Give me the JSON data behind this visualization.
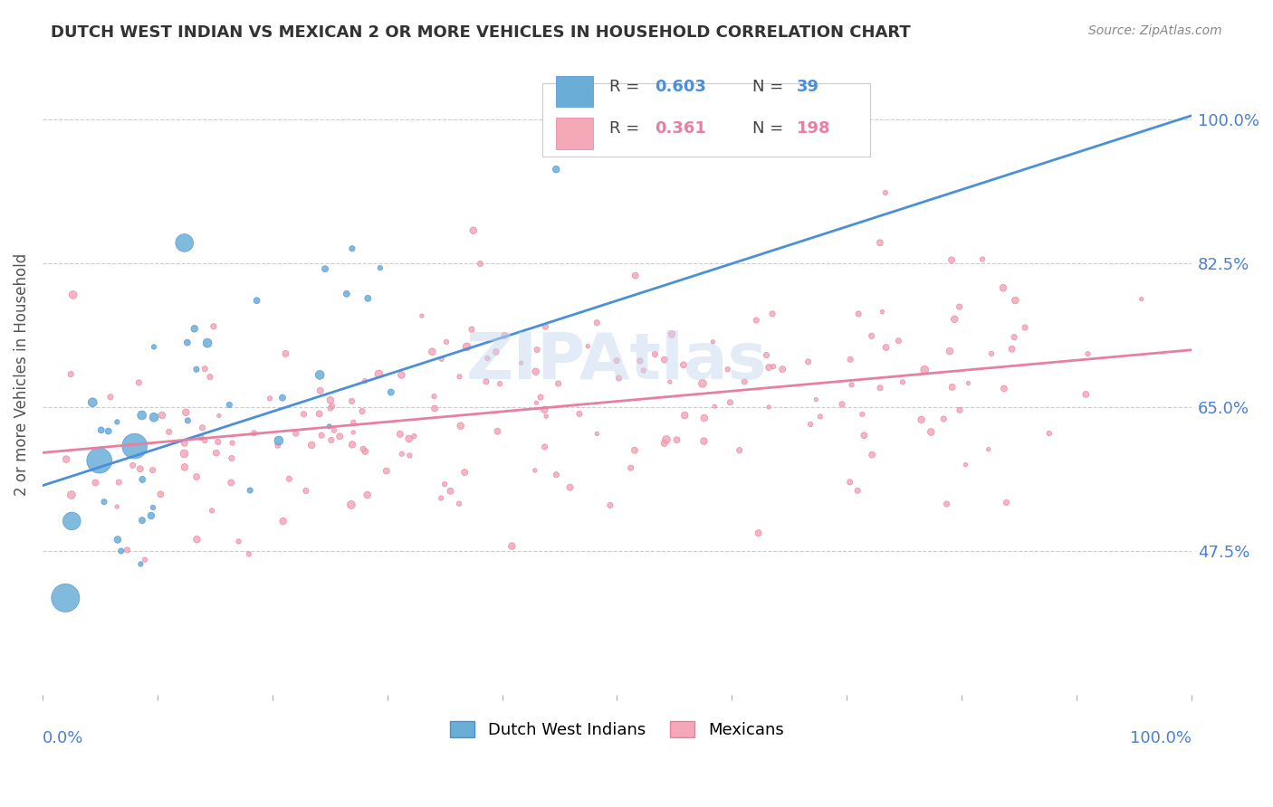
{
  "title": "DUTCH WEST INDIAN VS MEXICAN 2 OR MORE VEHICLES IN HOUSEHOLD CORRELATION CHART",
  "source": "Source: ZipAtlas.com",
  "ylabel": "2 or more Vehicles in Household",
  "xlim": [
    0.0,
    1.0
  ],
  "ylim": [
    0.3,
    1.08
  ],
  "blue_R": 0.603,
  "blue_N": 39,
  "pink_R": 0.361,
  "pink_N": 198,
  "blue_color": "#6aaed6",
  "pink_color": "#f4a8b8",
  "blue_line_color": "#4a90d9",
  "pink_line_color": "#e87fa0",
  "watermark": "ZIPAtlas",
  "legend_label_blue": "Dutch West Indians",
  "legend_label_pink": "Mexicans",
  "blue_trendline_x": [
    0.0,
    1.0
  ],
  "blue_trendline_y": [
    0.555,
    1.005
  ],
  "pink_trendline_x": [
    0.0,
    1.0
  ],
  "pink_trendline_y": [
    0.595,
    0.72
  ],
  "ytick_vals": [
    0.475,
    0.65,
    0.825,
    1.0
  ],
  "ytick_labels": [
    "47.5%",
    "65.0%",
    "82.5%",
    "100.0%"
  ]
}
